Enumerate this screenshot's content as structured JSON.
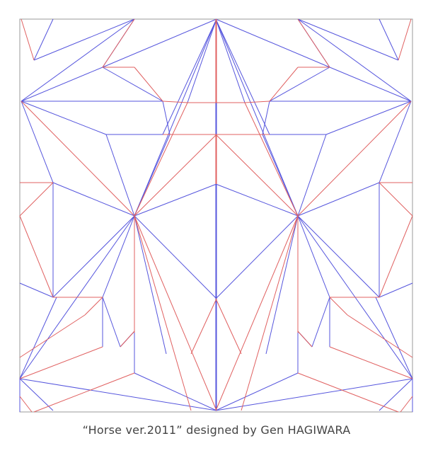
{
  "caption": "“Horse ver.2011” designed by Gen HAGIWARA",
  "colors": {
    "mountain": "#e06060",
    "valley": "#5555dd",
    "border": "#999999",
    "text": "#444444"
  }
}
